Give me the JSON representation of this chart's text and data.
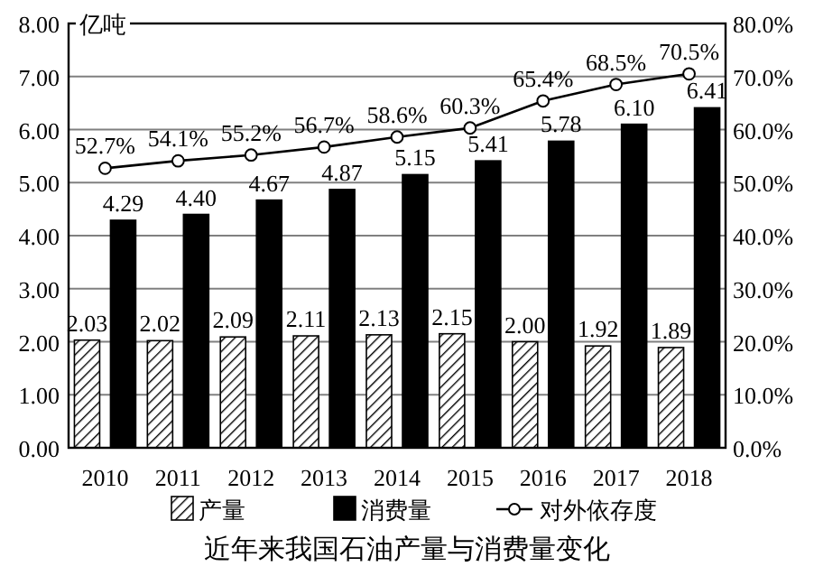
{
  "chart_data": {
    "type": "bar",
    "title": "近年来我国石油产量与消费量变化",
    "ylabel": "亿吨",
    "categories": [
      "2010",
      "2011",
      "2012",
      "2013",
      "2014",
      "2015",
      "2016",
      "2017",
      "2018"
    ],
    "series": [
      {
        "name": "产量",
        "color": "#000000",
        "values": [
          2.03,
          2.02,
          2.09,
          2.11,
          2.13,
          2.15,
          2.0,
          1.92,
          1.89
        ],
        "value_labels": [
          "2.03",
          "2.02",
          "2.09",
          "2.11",
          "2.13",
          "2.15",
          "2.00",
          "1.92",
          "1.89"
        ]
      },
      {
        "name": "消费量",
        "color": "#000000",
        "values": [
          4.29,
          4.4,
          4.67,
          4.87,
          5.15,
          5.41,
          5.78,
          6.1,
          6.41
        ],
        "value_labels": [
          "4.29",
          "4.40",
          "4.67",
          "4.87",
          "5.15",
          "5.41",
          "5.78",
          "6.10",
          "6.41"
        ]
      },
      {
        "name": "对外依存度",
        "type": "line",
        "axis": "y2",
        "color": "#000000",
        "marker": "circle",
        "values": [
          52.7,
          54.1,
          55.2,
          56.7,
          58.6,
          60.3,
          65.4,
          68.5,
          70.5
        ],
        "value_labels": [
          "52.7%",
          "54.1%",
          "55.2%",
          "56.7%",
          "58.6%",
          "60.3%",
          "65.4%",
          "68.5%",
          "70.5%"
        ]
      }
    ],
    "ylim": [
      0,
      8
    ],
    "yticks": [
      {
        "value": 0,
        "label": "0.00"
      },
      {
        "value": 1,
        "label": "1.00"
      },
      {
        "value": 2,
        "label": "2.00"
      },
      {
        "value": 3,
        "label": "3.00"
      },
      {
        "value": 4,
        "label": "4.00"
      },
      {
        "value": 5,
        "label": "5.00"
      },
      {
        "value": 6,
        "label": "6.00"
      },
      {
        "value": 7,
        "label": "7.00"
      },
      {
        "value": 8,
        "label": "8.00"
      }
    ],
    "y2lim": [
      0,
      80
    ],
    "y2ticks": [
      {
        "value": 0,
        "label": "0.0%"
      },
      {
        "value": 10,
        "label": "10.0%"
      },
      {
        "value": 20,
        "label": "20.0%"
      },
      {
        "value": 30,
        "label": "30.0%"
      },
      {
        "value": 40,
        "label": "40.0%"
      },
      {
        "value": 50,
        "label": "50.0%"
      },
      {
        "value": 60,
        "label": "60.0%"
      },
      {
        "value": 70,
        "label": "70.0%"
      },
      {
        "value": 80,
        "label": "80.0%"
      }
    ],
    "grid": "y",
    "legend": "bottom"
  }
}
